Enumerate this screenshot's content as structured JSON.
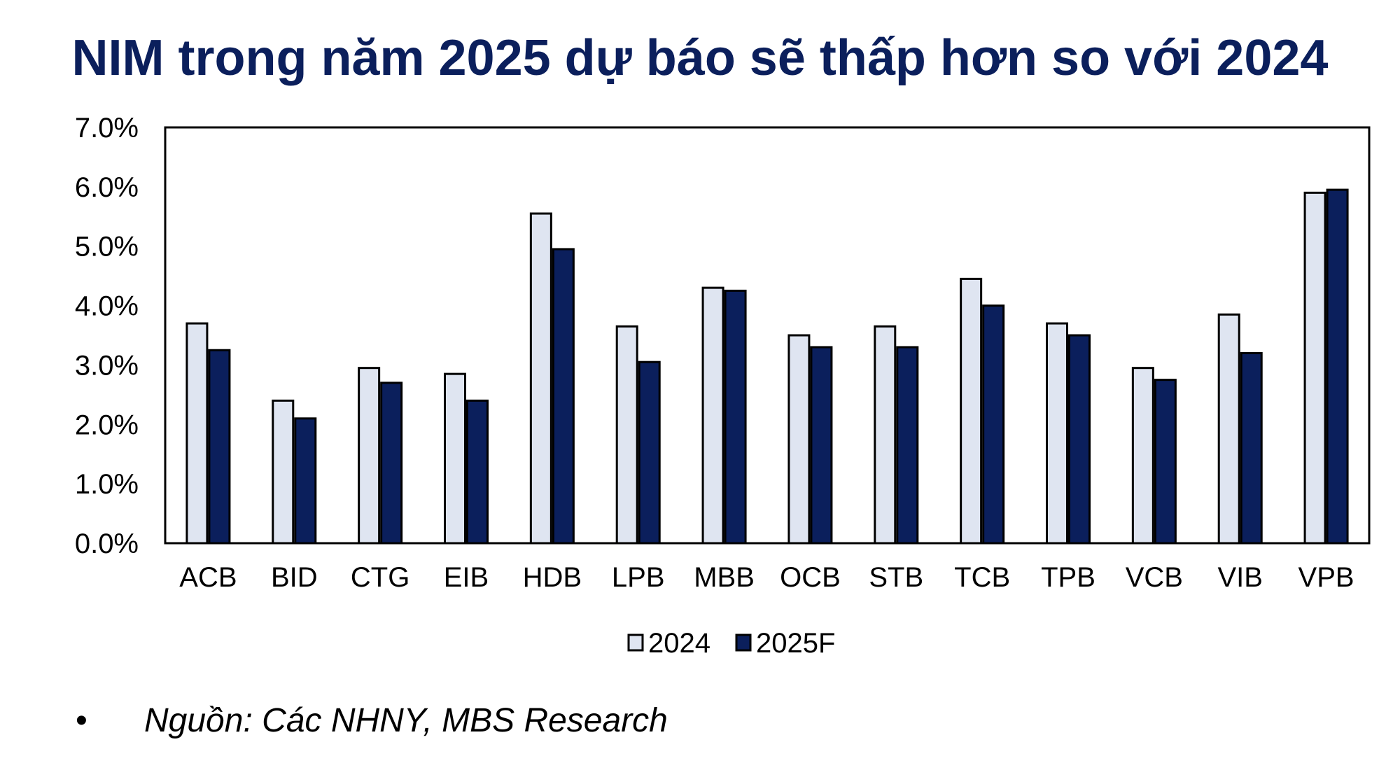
{
  "chart_data": {
    "type": "bar",
    "title": "NIM trong năm 2025 dự báo sẽ thấp hơn so với 2024",
    "categories": [
      "ACB",
      "BID",
      "CTG",
      "EIB",
      "HDB",
      "LPB",
      "MBB",
      "OCB",
      "STB",
      "TCB",
      "TPB",
      "VCB",
      "VIB",
      "VPB"
    ],
    "series": [
      {
        "name": "2024",
        "color": "#dfe5f1",
        "values": [
          3.7,
          2.4,
          2.95,
          2.85,
          5.55,
          3.65,
          4.3,
          3.5,
          3.65,
          4.45,
          3.7,
          2.95,
          3.85,
          5.9
        ]
      },
      {
        "name": "2025F",
        "color": "#0b1f5c",
        "values": [
          3.25,
          2.1,
          2.7,
          2.4,
          4.95,
          3.05,
          4.25,
          3.3,
          3.3,
          4.0,
          3.5,
          2.75,
          3.2,
          5.95
        ]
      }
    ],
    "ylim": [
      0,
      7
    ],
    "yticks": [
      0,
      1,
      2,
      3,
      4,
      5,
      6,
      7
    ],
    "ytick_labels": [
      "0.0%",
      "1.0%",
      "2.0%",
      "3.0%",
      "4.0%",
      "5.0%",
      "6.0%",
      "7.0%"
    ],
    "xlabel": "",
    "ylabel": "",
    "grid": false,
    "legend_position": "bottom"
  },
  "source": {
    "bullet": "•",
    "text": "Nguồn: Các NHNY, MBS Research"
  }
}
